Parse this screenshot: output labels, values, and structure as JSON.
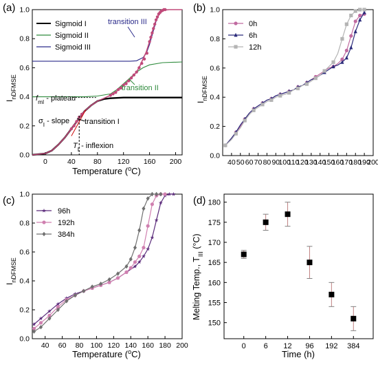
{
  "chart_data": [
    {
      "panel": "(a)",
      "type": "line",
      "xlabel": "Temperature (°C)",
      "ylabel": "I_nDFMSE",
      "xlim": [
        -20,
        210
      ],
      "ylim": [
        0.0,
        1.0
      ],
      "xticks": [
        0,
        40,
        80,
        120,
        160,
        200
      ],
      "yticks": [
        0.0,
        0.2,
        0.4,
        0.6,
        0.8,
        1.0
      ],
      "legend": "top-left",
      "series": [
        {
          "name": "Sigmoid I",
          "color": "#000000",
          "x": [
            -20,
            0,
            10,
            20,
            30,
            40,
            50,
            60,
            70,
            80,
            90,
            100,
            120,
            140,
            160,
            180,
            210
          ],
          "y": [
            0.0,
            0.01,
            0.03,
            0.07,
            0.12,
            0.18,
            0.24,
            0.3,
            0.34,
            0.37,
            0.385,
            0.39,
            0.395,
            0.395,
            0.395,
            0.395,
            0.395
          ]
        },
        {
          "name": "Sigmoid II",
          "color": "#2e8b3c",
          "x": [
            -20,
            60,
            80,
            100,
            110,
            120,
            130,
            140,
            150,
            160,
            180,
            210
          ],
          "y": [
            0.4,
            0.4,
            0.405,
            0.42,
            0.45,
            0.49,
            0.53,
            0.57,
            0.6,
            0.62,
            0.635,
            0.64
          ]
        },
        {
          "name": "Sigmoid III",
          "color": "#2a2a8a",
          "x": [
            -20,
            130,
            140,
            150,
            155,
            160,
            165,
            170,
            175,
            180,
            190,
            210
          ],
          "y": [
            0.645,
            0.645,
            0.648,
            0.67,
            0.7,
            0.76,
            0.84,
            0.92,
            0.97,
            0.995,
            1.0,
            1.0
          ]
        },
        {
          "name": "",
          "color": "#c04a7a",
          "x": [
            -20,
            0,
            10,
            20,
            30,
            40,
            50,
            60,
            70,
            80,
            90,
            100,
            110,
            120,
            130,
            140,
            145,
            150,
            155,
            160,
            165,
            170,
            175,
            180,
            190,
            200,
            210
          ],
          "y": [
            0.0,
            0.01,
            0.03,
            0.07,
            0.12,
            0.18,
            0.24,
            0.3,
            0.34,
            0.37,
            0.39,
            0.41,
            0.44,
            0.48,
            0.52,
            0.57,
            0.61,
            0.66,
            0.71,
            0.78,
            0.86,
            0.93,
            0.97,
            0.995,
            1.0,
            1.0,
            1.0
          ]
        },
        {
          "name": "",
          "color": "#c04a7a",
          "markers": "circle",
          "x": [
            40,
            44,
            48,
            52,
            56,
            100,
            104,
            108,
            112,
            116,
            120,
            124,
            128,
            132,
            136,
            140,
            144,
            148,
            152,
            156,
            160,
            162,
            164,
            166,
            168,
            170,
            172,
            174,
            176,
            178,
            180,
            182,
            184
          ],
          "y": [
            0.18,
            0.2,
            0.23,
            0.26,
            0.28,
            0.41,
            0.42,
            0.43,
            0.45,
            0.46,
            0.48,
            0.49,
            0.51,
            0.53,
            0.55,
            0.57,
            0.6,
            0.63,
            0.66,
            0.7,
            0.78,
            0.81,
            0.84,
            0.87,
            0.9,
            0.93,
            0.95,
            0.97,
            0.98,
            0.99,
            0.995,
            1.0,
            1.0
          ]
        }
      ],
      "annotations": [
        {
          "text": "transition III",
          "color": "#2a2a8a"
        },
        {
          "text": "transition II",
          "color": "#2e8b3c"
        },
        {
          "text": "transition I",
          "color": "#000000"
        },
        {
          "text": "f_mI - plateau",
          "color": "#000000"
        },
        {
          "text": "σ_I - slope",
          "color": "#000000"
        },
        {
          "text": "T_I - inflexion",
          "color": "#000000"
        }
      ]
    },
    {
      "panel": "(b)",
      "type": "line",
      "xlabel": "",
      "ylabel": "I_nDFMSE",
      "xlim": [
        30,
        200
      ],
      "ylim": [
        0.0,
        1.0
      ],
      "xticks": [
        40,
        50,
        60,
        70,
        80,
        90,
        100,
        110,
        120,
        130,
        140,
        150,
        160,
        170,
        180,
        190,
        200
      ],
      "yticks": [
        0.0,
        0.2,
        0.4,
        0.6,
        0.8,
        1.0
      ],
      "legend": "top-left",
      "series": [
        {
          "name": "0h",
          "color": "#c06aa0",
          "marker": "circle",
          "x": [
            33,
            40,
            45,
            50,
            55,
            60,
            65,
            70,
            75,
            80,
            85,
            90,
            95,
            100,
            105,
            110,
            115,
            120,
            125,
            130,
            135,
            140,
            145,
            150,
            155,
            160,
            165,
            170,
            175,
            180,
            185,
            190
          ],
          "y": [
            0.07,
            0.12,
            0.16,
            0.2,
            0.25,
            0.29,
            0.32,
            0.34,
            0.36,
            0.38,
            0.39,
            0.41,
            0.42,
            0.43,
            0.44,
            0.45,
            0.47,
            0.48,
            0.5,
            0.52,
            0.54,
            0.56,
            0.58,
            0.6,
            0.61,
            0.63,
            0.66,
            0.72,
            0.82,
            0.92,
            0.96,
            0.97
          ]
        },
        {
          "name": "6h",
          "color": "#2a2a7a",
          "marker": "triangle",
          "x": [
            33,
            40,
            45,
            50,
            55,
            60,
            65,
            70,
            75,
            80,
            85,
            90,
            95,
            100,
            105,
            110,
            115,
            120,
            125,
            130,
            135,
            140,
            145,
            150,
            155,
            160,
            165,
            170,
            175,
            180,
            185,
            190
          ],
          "y": [
            0.07,
            0.12,
            0.16,
            0.21,
            0.25,
            0.29,
            0.32,
            0.34,
            0.36,
            0.38,
            0.39,
            0.41,
            0.42,
            0.43,
            0.44,
            0.45,
            0.47,
            0.48,
            0.5,
            0.52,
            0.53,
            0.55,
            0.57,
            0.59,
            0.61,
            0.62,
            0.64,
            0.67,
            0.74,
            0.85,
            0.93,
            0.98
          ]
        },
        {
          "name": "12h",
          "color": "#b4b4b4",
          "marker": "square",
          "x": [
            33,
            40,
            45,
            50,
            55,
            60,
            65,
            70,
            75,
            80,
            85,
            90,
            95,
            100,
            105,
            110,
            115,
            120,
            125,
            130,
            135,
            140,
            145,
            150,
            155,
            160,
            165,
            170,
            175,
            180,
            185,
            190
          ],
          "y": [
            0.07,
            0.11,
            0.15,
            0.19,
            0.24,
            0.28,
            0.31,
            0.33,
            0.35,
            0.37,
            0.38,
            0.4,
            0.41,
            0.42,
            0.43,
            0.45,
            0.46,
            0.48,
            0.49,
            0.51,
            0.53,
            0.55,
            0.58,
            0.61,
            0.64,
            0.7,
            0.8,
            0.9,
            0.96,
            0.99,
            1.0,
            1.0
          ]
        }
      ]
    },
    {
      "panel": "(c)",
      "type": "line",
      "xlabel": "Temperature (°C)",
      "ylabel": "I_nDFMSE",
      "xlim": [
        25,
        200
      ],
      "ylim": [
        0.0,
        1.0
      ],
      "xticks": [
        40,
        60,
        80,
        100,
        120,
        140,
        160,
        180,
        200
      ],
      "yticks": [
        0.0,
        0.2,
        0.4,
        0.6,
        0.8,
        1.0
      ],
      "legend": "top-left",
      "series": [
        {
          "name": "96h",
          "color": "#5a2a7a",
          "marker": "star",
          "x": [
            27,
            35,
            45,
            55,
            65,
            75,
            85,
            95,
            105,
            115,
            125,
            135,
            145,
            150,
            155,
            160,
            165,
            170,
            175,
            180,
            185,
            190
          ],
          "y": [
            0.1,
            0.14,
            0.19,
            0.24,
            0.28,
            0.31,
            0.33,
            0.35,
            0.37,
            0.39,
            0.42,
            0.46,
            0.5,
            0.53,
            0.57,
            0.62,
            0.7,
            0.82,
            0.94,
            0.99,
            1.0,
            1.0
          ]
        },
        {
          "name": "192h",
          "color": "#d080b0",
          "marker": "circle",
          "x": [
            27,
            35,
            45,
            55,
            65,
            75,
            85,
            95,
            105,
            115,
            125,
            135,
            140,
            145,
            150,
            155,
            160,
            165,
            170,
            175,
            180
          ],
          "y": [
            0.07,
            0.11,
            0.16,
            0.22,
            0.27,
            0.3,
            0.33,
            0.35,
            0.37,
            0.39,
            0.42,
            0.46,
            0.49,
            0.53,
            0.57,
            0.63,
            0.78,
            0.93,
            0.99,
            1.0,
            1.0
          ]
        },
        {
          "name": "384h",
          "color": "#707070",
          "marker": "diamond",
          "x": [
            27,
            35,
            45,
            55,
            65,
            75,
            85,
            95,
            105,
            115,
            125,
            135,
            140,
            145,
            150,
            155,
            160,
            165,
            170,
            175
          ],
          "y": [
            0.05,
            0.08,
            0.14,
            0.2,
            0.26,
            0.3,
            0.33,
            0.36,
            0.38,
            0.41,
            0.45,
            0.5,
            0.55,
            0.63,
            0.75,
            0.9,
            0.97,
            1.0,
            1.0,
            1.0
          ]
        }
      ]
    },
    {
      "panel": "(d)",
      "type": "scatter",
      "xlabel": "Time (h)",
      "ylabel": "Melting Temp., T_III (°C)",
      "ylim": [
        146,
        182
      ],
      "yticks": [
        150,
        155,
        160,
        165,
        170,
        175,
        180
      ],
      "categories": [
        "0",
        "6",
        "12",
        "96",
        "192",
        "384"
      ],
      "values": [
        167,
        175,
        177,
        165,
        157,
        151
      ],
      "errors": [
        1,
        2,
        3,
        4,
        3,
        3
      ]
    }
  ]
}
